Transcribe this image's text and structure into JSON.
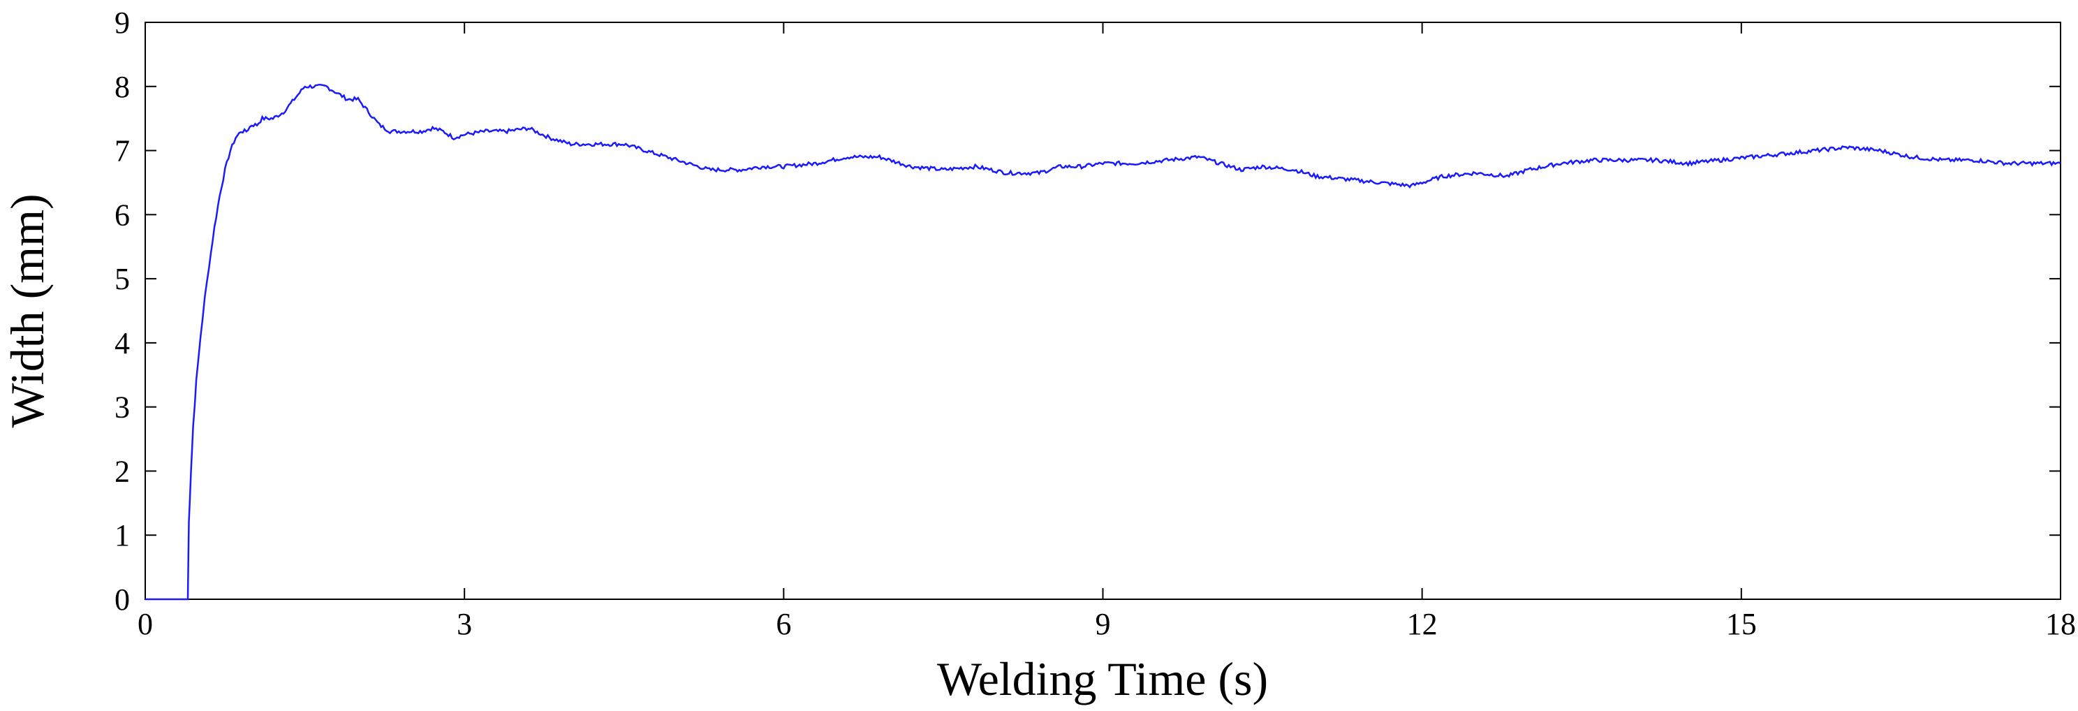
{
  "chart_data": {
    "type": "line",
    "xlabel": "Welding Time (s)",
    "ylabel": "Width (mm)",
    "xlim": [
      0,
      18
    ],
    "ylim": [
      0,
      9
    ],
    "xticks": [
      "0",
      "3",
      "6",
      "9",
      "12",
      "15",
      "18"
    ],
    "yticks": [
      "0",
      "1",
      "2",
      "3",
      "4",
      "5",
      "6",
      "7",
      "8",
      "9"
    ],
    "grid": false,
    "legend": "none",
    "series": [
      {
        "color": "#1a1aff",
        "x": [
          0,
          0.4,
          0.41,
          0.43,
          0.45,
          0.48,
          0.52,
          0.56,
          0.6,
          0.65,
          0.7,
          0.75,
          0.8,
          0.85,
          0.9,
          0.95,
          1.0,
          1.05,
          1.1,
          1.2,
          1.3,
          1.4,
          1.5,
          1.6,
          1.7,
          1.8,
          1.9,
          2.0,
          2.1,
          2.2,
          2.3,
          2.4,
          2.5,
          2.6,
          2.7,
          2.8,
          2.9,
          3.0,
          3.2,
          3.4,
          3.6,
          3.8,
          4.0,
          4.2,
          4.3,
          4.4,
          4.5,
          4.7,
          5.0,
          5.3,
          5.6,
          5.8,
          6.0,
          6.3,
          6.6,
          6.9,
          7.2,
          7.5,
          7.8,
          8.1,
          8.4,
          8.6,
          8.8,
          9.0,
          9.3,
          9.6,
          9.9,
          10.1,
          10.3,
          10.5,
          10.8,
          11.0,
          11.3,
          11.6,
          11.9,
          12.2,
          12.5,
          12.8,
          13.0,
          13.3,
          13.6,
          13.9,
          14.2,
          14.5,
          14.8,
          15.1,
          15.4,
          15.7,
          16.0,
          16.3,
          16.6,
          16.9,
          17.2,
          17.5,
          17.8,
          18.0
        ],
        "y": [
          0,
          0,
          1.2,
          2.0,
          2.7,
          3.4,
          4.1,
          4.7,
          5.2,
          5.8,
          6.3,
          6.7,
          7.0,
          7.2,
          7.3,
          7.3,
          7.4,
          7.4,
          7.5,
          7.5,
          7.6,
          7.8,
          8.0,
          8.0,
          8.0,
          7.9,
          7.8,
          7.8,
          7.6,
          7.4,
          7.3,
          7.3,
          7.3,
          7.3,
          7.35,
          7.3,
          7.2,
          7.25,
          7.3,
          7.3,
          7.35,
          7.2,
          7.1,
          7.1,
          7.1,
          7.1,
          7.1,
          7.0,
          6.85,
          6.7,
          6.7,
          6.75,
          6.75,
          6.8,
          6.9,
          6.9,
          6.75,
          6.7,
          6.75,
          6.65,
          6.65,
          6.75,
          6.75,
          6.8,
          6.8,
          6.85,
          6.9,
          6.8,
          6.7,
          6.75,
          6.7,
          6.6,
          6.55,
          6.5,
          6.45,
          6.6,
          6.65,
          6.6,
          6.7,
          6.8,
          6.85,
          6.85,
          6.85,
          6.8,
          6.85,
          6.9,
          6.95,
          7.0,
          7.05,
          7.0,
          6.9,
          6.85,
          6.85,
          6.8,
          6.8,
          6.8
        ]
      }
    ]
  }
}
